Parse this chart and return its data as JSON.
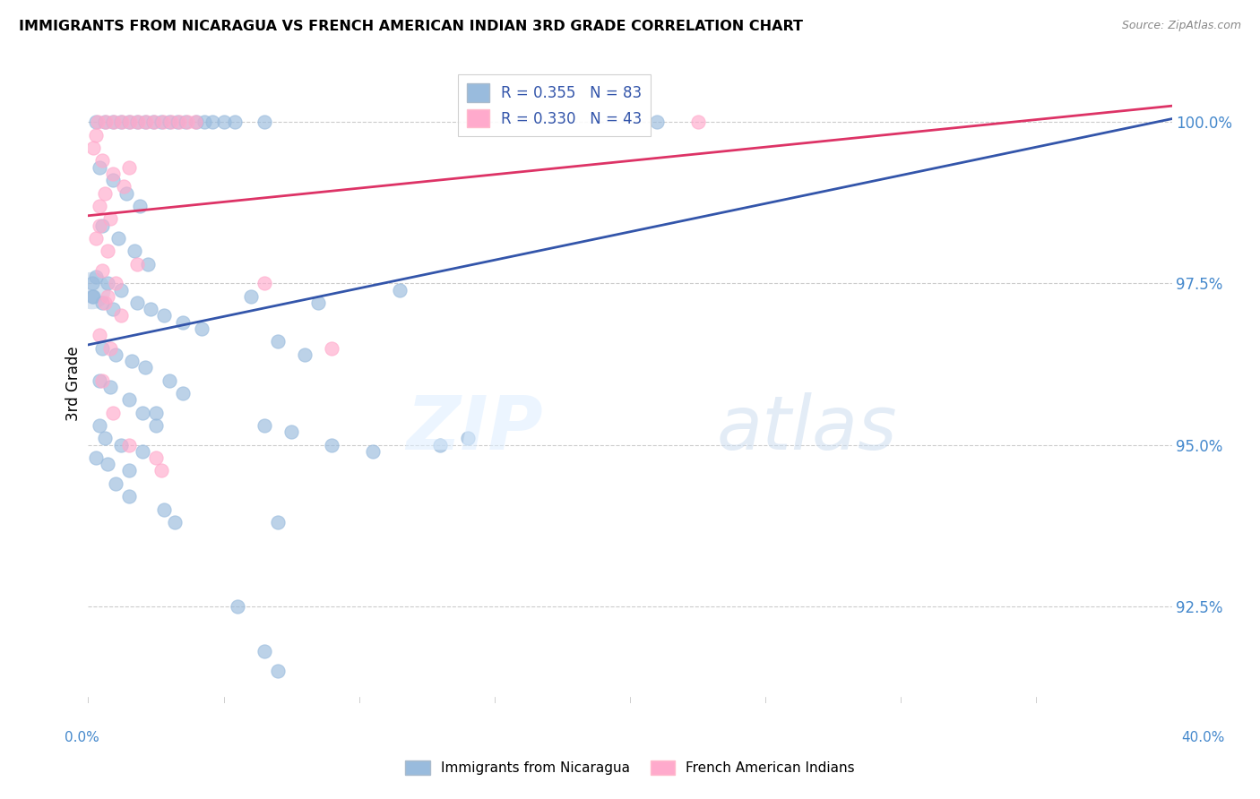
{
  "title": "IMMIGRANTS FROM NICARAGUA VS FRENCH AMERICAN INDIAN 3RD GRADE CORRELATION CHART",
  "source": "Source: ZipAtlas.com",
  "ylabel": "3rd Grade",
  "yticks": [
    92.5,
    95.0,
    97.5,
    100.0
  ],
  "ytick_labels": [
    "92.5%",
    "95.0%",
    "97.5%",
    "100.0%"
  ],
  "xmin": 0.0,
  "xmax": 40.0,
  "ymin": 91.0,
  "ymax": 100.9,
  "blue_color": "#99BBDD",
  "pink_color": "#FFAACC",
  "blue_line_color": "#3355AA",
  "pink_line_color": "#DD3366",
  "R_blue": 0.355,
  "N_blue": 83,
  "R_pink": 0.33,
  "N_pink": 43,
  "legend_label_blue": "Immigrants from Nicaragua",
  "legend_label_pink": "French American Indians",
  "blue_line_x0": 0.0,
  "blue_line_y0": 96.55,
  "blue_line_x1": 40.0,
  "blue_line_y1": 100.05,
  "pink_line_x0": 0.0,
  "pink_line_y0": 98.55,
  "pink_line_x1": 40.0,
  "pink_line_y1": 100.25,
  "blue_pts": [
    [
      0.3,
      100.0
    ],
    [
      0.6,
      100.0
    ],
    [
      0.9,
      100.0
    ],
    [
      1.2,
      100.0
    ],
    [
      1.5,
      100.0
    ],
    [
      1.8,
      100.0
    ],
    [
      2.1,
      100.0
    ],
    [
      2.4,
      100.0
    ],
    [
      2.7,
      100.0
    ],
    [
      3.0,
      100.0
    ],
    [
      3.3,
      100.0
    ],
    [
      3.6,
      100.0
    ],
    [
      4.0,
      100.0
    ],
    [
      4.3,
      100.0
    ],
    [
      4.6,
      100.0
    ],
    [
      5.0,
      100.0
    ],
    [
      5.4,
      100.0
    ],
    [
      6.5,
      100.0
    ],
    [
      21.0,
      100.0
    ],
    [
      0.4,
      99.3
    ],
    [
      0.9,
      99.1
    ],
    [
      1.4,
      98.9
    ],
    [
      1.9,
      98.7
    ],
    [
      0.5,
      98.4
    ],
    [
      1.1,
      98.2
    ],
    [
      1.7,
      98.0
    ],
    [
      2.2,
      97.8
    ],
    [
      0.3,
      97.6
    ],
    [
      0.7,
      97.5
    ],
    [
      1.2,
      97.4
    ],
    [
      1.8,
      97.2
    ],
    [
      2.3,
      97.1
    ],
    [
      2.8,
      97.0
    ],
    [
      3.5,
      96.9
    ],
    [
      4.2,
      96.8
    ],
    [
      0.5,
      96.5
    ],
    [
      1.0,
      96.4
    ],
    [
      1.6,
      96.3
    ],
    [
      2.1,
      96.2
    ],
    [
      0.4,
      96.0
    ],
    [
      0.8,
      95.9
    ],
    [
      1.5,
      95.7
    ],
    [
      2.5,
      95.5
    ],
    [
      0.4,
      95.3
    ],
    [
      0.6,
      95.1
    ],
    [
      1.2,
      95.0
    ],
    [
      2.0,
      94.9
    ],
    [
      0.3,
      94.8
    ],
    [
      0.7,
      94.7
    ],
    [
      1.5,
      94.6
    ],
    [
      0.2,
      97.3
    ],
    [
      0.5,
      97.2
    ],
    [
      0.9,
      97.1
    ],
    [
      6.0,
      97.3
    ],
    [
      8.5,
      97.2
    ],
    [
      11.5,
      97.4
    ],
    [
      7.0,
      96.6
    ],
    [
      8.0,
      96.4
    ],
    [
      6.5,
      95.3
    ],
    [
      7.5,
      95.2
    ],
    [
      9.0,
      95.0
    ],
    [
      10.5,
      94.9
    ],
    [
      13.0,
      95.0
    ],
    [
      14.0,
      95.1
    ],
    [
      7.0,
      93.8
    ],
    [
      5.5,
      92.5
    ],
    [
      6.5,
      91.8
    ],
    [
      7.0,
      91.5
    ],
    [
      3.0,
      96.0
    ],
    [
      3.5,
      95.8
    ],
    [
      2.0,
      95.5
    ],
    [
      2.5,
      95.3
    ],
    [
      1.0,
      94.4
    ],
    [
      1.5,
      94.2
    ],
    [
      2.8,
      94.0
    ],
    [
      3.2,
      93.8
    ],
    [
      0.15,
      97.5
    ],
    [
      0.15,
      97.3
    ]
  ],
  "pink_pts": [
    [
      0.35,
      100.0
    ],
    [
      0.65,
      100.0
    ],
    [
      0.95,
      100.0
    ],
    [
      1.25,
      100.0
    ],
    [
      1.55,
      100.0
    ],
    [
      1.85,
      100.0
    ],
    [
      2.15,
      100.0
    ],
    [
      2.45,
      100.0
    ],
    [
      2.75,
      100.0
    ],
    [
      3.05,
      100.0
    ],
    [
      3.35,
      100.0
    ],
    [
      3.65,
      100.0
    ],
    [
      3.95,
      100.0
    ],
    [
      22.5,
      100.0
    ],
    [
      0.5,
      99.4
    ],
    [
      0.9,
      99.2
    ],
    [
      1.3,
      99.0
    ],
    [
      0.4,
      98.7
    ],
    [
      0.8,
      98.5
    ],
    [
      0.3,
      98.2
    ],
    [
      0.7,
      98.0
    ],
    [
      0.5,
      97.7
    ],
    [
      1.0,
      97.5
    ],
    [
      0.6,
      97.2
    ],
    [
      1.2,
      97.0
    ],
    [
      0.4,
      96.7
    ],
    [
      0.8,
      96.5
    ],
    [
      0.3,
      99.8
    ],
    [
      0.2,
      99.6
    ],
    [
      1.5,
      99.3
    ],
    [
      0.6,
      98.9
    ],
    [
      0.4,
      98.4
    ],
    [
      1.8,
      97.8
    ],
    [
      0.7,
      97.3
    ],
    [
      2.5,
      94.8
    ],
    [
      2.7,
      94.6
    ],
    [
      6.5,
      97.5
    ],
    [
      9.0,
      96.5
    ],
    [
      0.5,
      96.0
    ],
    [
      0.9,
      95.5
    ],
    [
      1.5,
      95.0
    ]
  ],
  "big_blue_x": 0.12,
  "big_blue_y": 97.4
}
